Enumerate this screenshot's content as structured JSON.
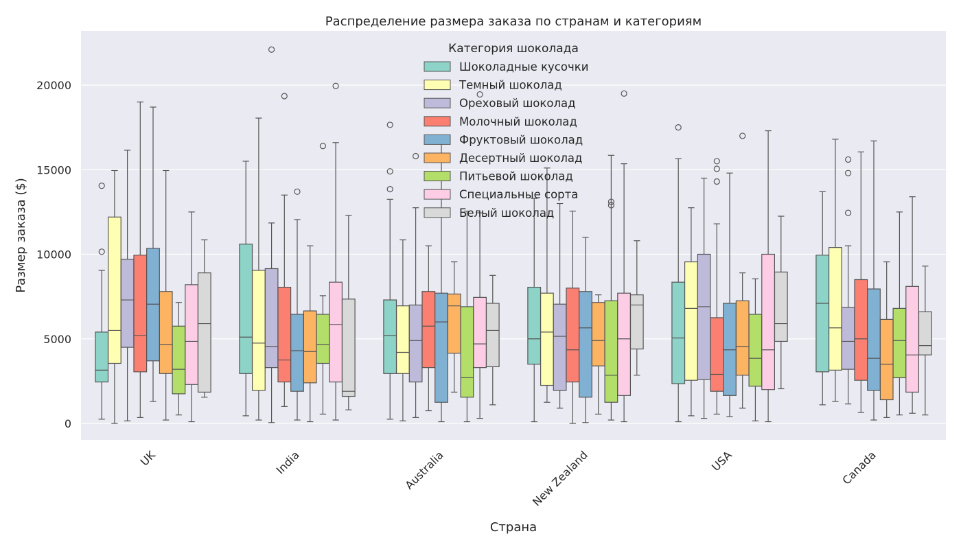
{
  "chart_data": {
    "type": "boxplot",
    "title": "Распределение размера заказа по странам и категориям",
    "xlabel": "Страна",
    "ylabel": "Размер заказа ($)",
    "ylim": [
      -1000,
      23500
    ],
    "yticks": [
      0,
      5000,
      10000,
      15000,
      20000
    ],
    "grid": true,
    "legend_title": "Категория шоколада",
    "legend_position": "top-center",
    "categories": [
      "UK",
      "India",
      "Australia",
      "New Zealand",
      "USA",
      "Canada"
    ],
    "series": [
      {
        "name": "Шоколадные кусочки",
        "color": "#8dd3c7",
        "stats": [
          {
            "low": 250,
            "q1": 2450,
            "median": 3150,
            "q3": 5400,
            "high": 9050,
            "outliers": [
              10150,
              14050
            ]
          },
          {
            "low": 450,
            "q1": 2950,
            "median": 5100,
            "q3": 10600,
            "high": 15500,
            "outliers": []
          },
          {
            "low": 250,
            "q1": 2950,
            "median": 5200,
            "q3": 7300,
            "high": 13250,
            "outliers": [
              13850,
              14900,
              17650
            ]
          },
          {
            "low": 100,
            "q1": 3500,
            "median": 5000,
            "q3": 8050,
            "high": 13300,
            "outliers": []
          },
          {
            "low": 100,
            "q1": 2350,
            "median": 5050,
            "q3": 8350,
            "high": 15650,
            "outliers": [
              17500
            ]
          },
          {
            "low": 1100,
            "q1": 3050,
            "median": 7100,
            "q3": 9950,
            "high": 13700,
            "outliers": []
          }
        ]
      },
      {
        "name": "Темный шоколад",
        "color": "#ffffb3",
        "stats": [
          {
            "low": 0,
            "q1": 3550,
            "median": 5500,
            "q3": 12200,
            "high": 14950,
            "outliers": []
          },
          {
            "low": 200,
            "q1": 1950,
            "median": 4750,
            "q3": 9050,
            "high": 18050,
            "outliers": []
          },
          {
            "low": 150,
            "q1": 2950,
            "median": 4200,
            "q3": 6950,
            "high": 10850,
            "outliers": []
          },
          {
            "low": 1250,
            "q1": 2250,
            "median": 5400,
            "q3": 7700,
            "high": 15100,
            "outliers": []
          },
          {
            "low": 450,
            "q1": 2550,
            "median": 6800,
            "q3": 9550,
            "high": 12750,
            "outliers": []
          },
          {
            "low": 1300,
            "q1": 3150,
            "median": 5650,
            "q3": 10400,
            "high": 16800,
            "outliers": []
          }
        ]
      },
      {
        "name": "Ореховый шоколад",
        "color": "#bebada",
        "stats": [
          {
            "low": 150,
            "q1": 4500,
            "median": 7300,
            "q3": 9700,
            "high": 16150,
            "outliers": []
          },
          {
            "low": 50,
            "q1": 3300,
            "median": 4550,
            "q3": 9150,
            "high": 11850,
            "outliers": [
              22100
            ]
          },
          {
            "low": 350,
            "q1": 2450,
            "median": 4900,
            "q3": 7000,
            "high": 12750,
            "outliers": [
              15800
            ]
          },
          {
            "low": 900,
            "q1": 1950,
            "median": 5150,
            "q3": 7050,
            "high": 13000,
            "outliers": []
          },
          {
            "low": 300,
            "q1": 2600,
            "median": 6900,
            "q3": 10000,
            "high": 14500,
            "outliers": []
          },
          {
            "low": 1150,
            "q1": 3200,
            "median": 4850,
            "q3": 6850,
            "high": 10500,
            "outliers": [
              12450,
              14800,
              15600
            ]
          }
        ]
      },
      {
        "name": "Молочный шоколад",
        "color": "#fb8072",
        "stats": [
          {
            "low": 350,
            "q1": 3050,
            "median": 5200,
            "q3": 9950,
            "high": 19000,
            "outliers": []
          },
          {
            "low": 1000,
            "q1": 2450,
            "median": 3750,
            "q3": 8050,
            "high": 13500,
            "outliers": [
              19350
            ]
          },
          {
            "low": 750,
            "q1": 3300,
            "median": 5750,
            "q3": 7800,
            "high": 10500,
            "outliers": []
          },
          {
            "low": 0,
            "q1": 2450,
            "median": 4350,
            "q3": 8000,
            "high": 12550,
            "outliers": []
          },
          {
            "low": 550,
            "q1": 1900,
            "median": 2900,
            "q3": 6250,
            "high": 11800,
            "outliers": [
              14300,
              15050,
              15500
            ]
          },
          {
            "low": 650,
            "q1": 2550,
            "median": 5000,
            "q3": 8500,
            "high": 16050,
            "outliers": []
          }
        ]
      },
      {
        "name": "Фруктовый шоколад",
        "color": "#80b1d3",
        "stats": [
          {
            "low": 1300,
            "q1": 3700,
            "median": 7050,
            "q3": 10350,
            "high": 18700,
            "outliers": []
          },
          {
            "low": 200,
            "q1": 1900,
            "median": 4300,
            "q3": 6450,
            "high": 12050,
            "outliers": [
              13700
            ]
          },
          {
            "low": 100,
            "q1": 1250,
            "median": 6000,
            "q3": 7700,
            "high": 16700,
            "outliers": []
          },
          {
            "low": 50,
            "q1": 1550,
            "median": 5650,
            "q3": 7800,
            "high": 11000,
            "outliers": []
          },
          {
            "low": 400,
            "q1": 1650,
            "median": 4350,
            "q3": 7100,
            "high": 14800,
            "outliers": []
          },
          {
            "low": 200,
            "q1": 1950,
            "median": 3850,
            "q3": 7950,
            "high": 16700,
            "outliers": []
          }
        ]
      },
      {
        "name": "Десертный шоколад",
        "color": "#fdb462",
        "stats": [
          {
            "low": 200,
            "q1": 2950,
            "median": 4650,
            "q3": 7800,
            "high": 14950,
            "outliers": []
          },
          {
            "low": 100,
            "q1": 2400,
            "median": 4250,
            "q3": 6650,
            "high": 10500,
            "outliers": []
          },
          {
            "low": 1850,
            "q1": 4150,
            "median": 6950,
            "q3": 7650,
            "high": 9550,
            "outliers": []
          },
          {
            "low": 550,
            "q1": 3400,
            "median": 4900,
            "q3": 7150,
            "high": 7600,
            "outliers": []
          },
          {
            "low": 900,
            "q1": 2850,
            "median": 4550,
            "q3": 7250,
            "high": 8900,
            "outliers": [
              17000
            ]
          },
          {
            "low": 350,
            "q1": 1400,
            "median": 3500,
            "q3": 6150,
            "high": 9550,
            "outliers": []
          }
        ]
      },
      {
        "name": "Питьевой шоколад",
        "color": "#b3de69",
        "stats": [
          {
            "low": 500,
            "q1": 1750,
            "median": 3200,
            "q3": 5750,
            "high": 7150,
            "outliers": []
          },
          {
            "low": 550,
            "q1": 3550,
            "median": 4650,
            "q3": 6450,
            "high": 7550,
            "outliers": [
              16400
            ]
          },
          {
            "low": 100,
            "q1": 1550,
            "median": 2700,
            "q3": 6900,
            "high": 12550,
            "outliers": []
          },
          {
            "low": 200,
            "q1": 1250,
            "median": 2850,
            "q3": 7250,
            "high": 15850,
            "outliers": [
              12900,
              13100
            ]
          },
          {
            "low": 150,
            "q1": 2200,
            "median": 3850,
            "q3": 6450,
            "high": 8550,
            "outliers": []
          },
          {
            "low": 500,
            "q1": 2700,
            "median": 4900,
            "q3": 6800,
            "high": 12500,
            "outliers": []
          }
        ]
      },
      {
        "name": "Специальные сорта",
        "color": "#fccde5",
        "stats": [
          {
            "low": 100,
            "q1": 2300,
            "median": 4850,
            "q3": 8200,
            "high": 12500,
            "outliers": []
          },
          {
            "low": 200,
            "q1": 2450,
            "median": 5850,
            "q3": 8350,
            "high": 16600,
            "outliers": [
              19950
            ]
          },
          {
            "low": 300,
            "q1": 3300,
            "median": 4700,
            "q3": 7450,
            "high": 12450,
            "outliers": [
              19450
            ]
          },
          {
            "low": 100,
            "q1": 1650,
            "median": 5000,
            "q3": 7700,
            "high": 15350,
            "outliers": [
              19500
            ]
          },
          {
            "low": 100,
            "q1": 2000,
            "median": 4350,
            "q3": 10000,
            "high": 17300,
            "outliers": []
          },
          {
            "low": 600,
            "q1": 1850,
            "median": 4050,
            "q3": 8100,
            "high": 13400,
            "outliers": []
          }
        ]
      },
      {
        "name": "Белый шоколад",
        "color": "#d9d9d9",
        "stats": [
          {
            "low": 1550,
            "q1": 1850,
            "median": 5900,
            "q3": 8900,
            "high": 10850,
            "outliers": []
          },
          {
            "low": 800,
            "q1": 1600,
            "median": 1900,
            "q3": 7350,
            "high": 12300,
            "outliers": []
          },
          {
            "low": 1100,
            "q1": 3350,
            "median": 5500,
            "q3": 7100,
            "high": 8750,
            "outliers": []
          },
          {
            "low": 2850,
            "q1": 4400,
            "median": 7000,
            "q3": 7600,
            "high": 10800,
            "outliers": []
          },
          {
            "low": 2050,
            "q1": 4850,
            "median": 5900,
            "q3": 8950,
            "high": 12250,
            "outliers": []
          },
          {
            "low": 500,
            "q1": 4050,
            "median": 4600,
            "q3": 6600,
            "high": 9300,
            "outliers": []
          }
        ]
      }
    ]
  }
}
